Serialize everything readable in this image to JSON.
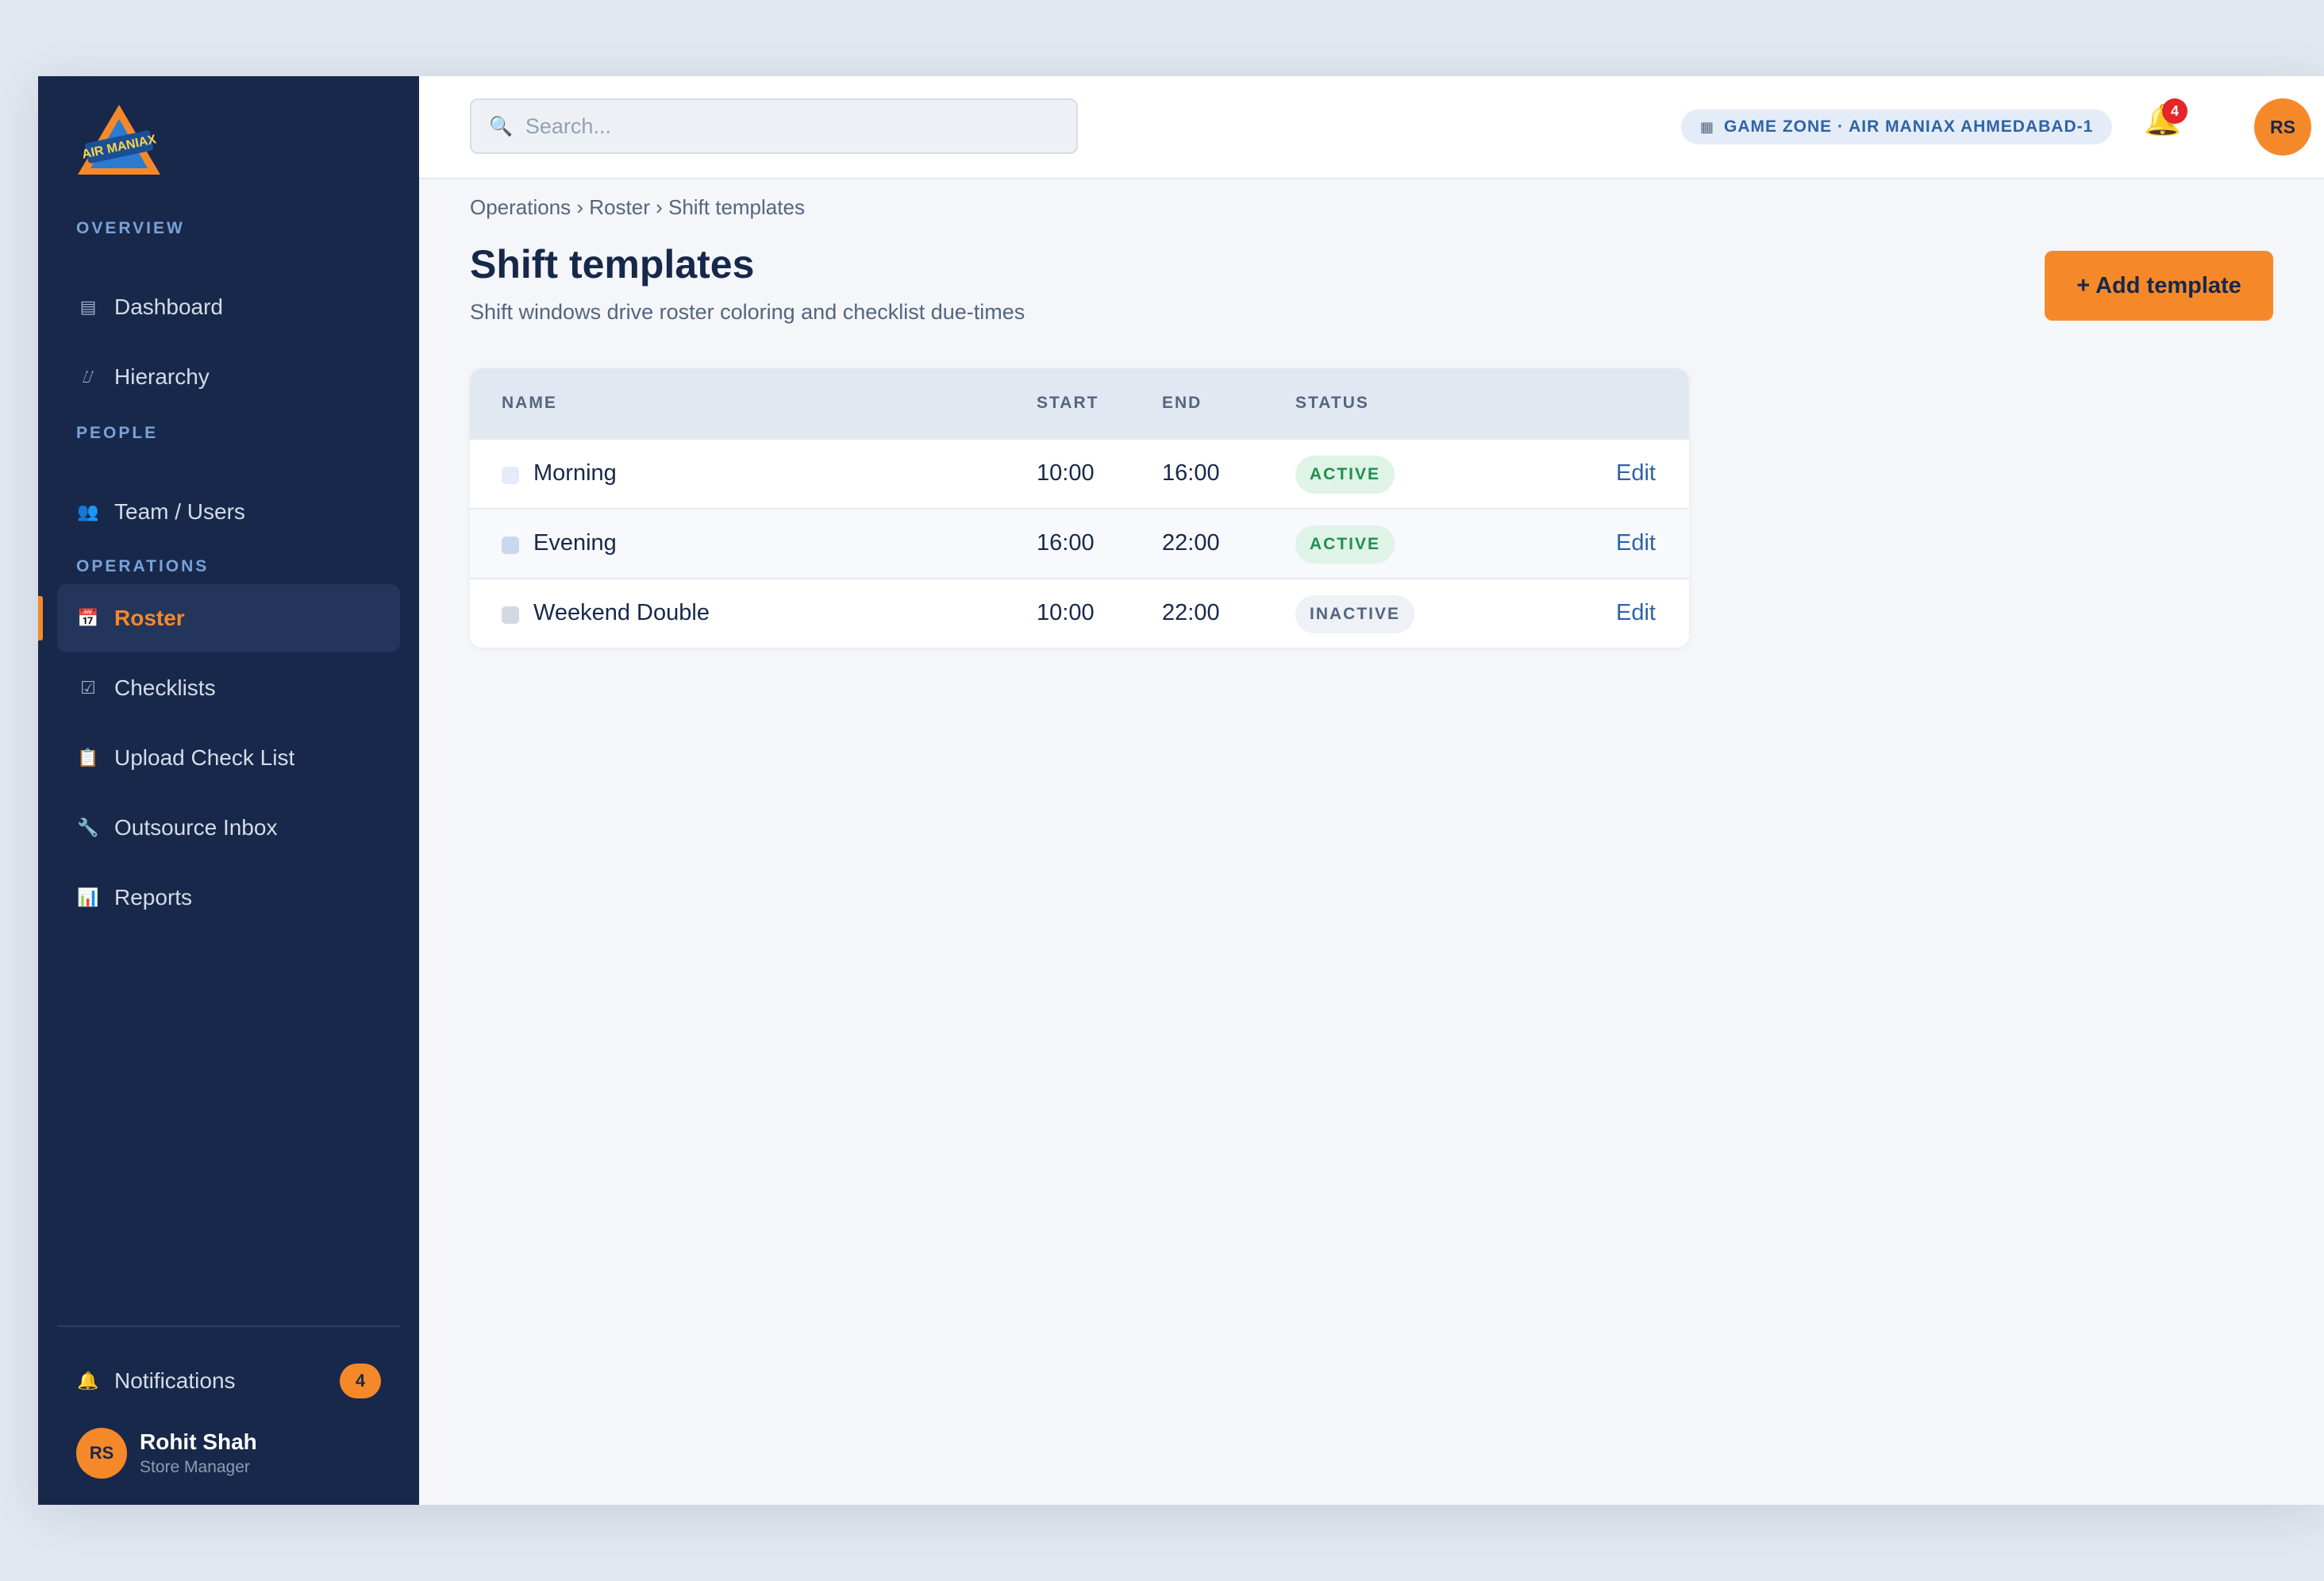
{
  "sidebar": {
    "logo_text": "AIR MANIAX",
    "sections": {
      "overview": "OVERVIEW",
      "people": "PEOPLE",
      "operations": "OPERATIONS"
    },
    "items": [
      {
        "label": "Dashboard",
        "icon": "dashboard-icon"
      },
      {
        "label": "Hierarchy",
        "icon": "hierarchy-icon"
      },
      {
        "label": "Team / Users",
        "icon": "users-icon"
      },
      {
        "label": "Roster",
        "icon": "calendar-icon",
        "active": true
      },
      {
        "label": "Checklists",
        "icon": "checkbox-icon"
      },
      {
        "label": "Upload Check List",
        "icon": "clipboard-icon"
      },
      {
        "label": "Outsource Inbox",
        "icon": "wrench-icon"
      },
      {
        "label": "Reports",
        "icon": "bar-chart-icon"
      }
    ],
    "notifications": {
      "label": "Notifications",
      "count": "4"
    },
    "user": {
      "initials": "RS",
      "name": "Rohit Shah",
      "role": "Store Manager"
    }
  },
  "topbar": {
    "search_placeholder": "Search...",
    "zone": "GAME ZONE · AIR MANIAX AHMEDABAD-1",
    "notification_count": "4",
    "avatar_initials": "RS"
  },
  "page": {
    "breadcrumb": "Operations › Roster › Shift templates",
    "title": "Shift templates",
    "subtitle": "Shift windows drive roster coloring and checklist due-times",
    "add_button": "+ Add template"
  },
  "table": {
    "columns": [
      "NAME",
      "START",
      "END",
      "STATUS"
    ],
    "rows": [
      {
        "name": "Morning",
        "start": "10:00",
        "end": "16:00",
        "status": "ACTIVE",
        "action": "Edit",
        "color": "#e3ecf8"
      },
      {
        "name": "Evening",
        "start": "16:00",
        "end": "22:00",
        "status": "ACTIVE",
        "action": "Edit",
        "color": "#c9d8ee"
      },
      {
        "name": "Weekend Double",
        "start": "10:00",
        "end": "22:00",
        "status": "INACTIVE",
        "action": "Edit",
        "color": "#d3d9e3"
      }
    ]
  },
  "colors": {
    "sidebar_bg": "#17284a",
    "accent": "#f5892a",
    "link": "#2e63a6",
    "active_status": "#1f8f4e"
  }
}
